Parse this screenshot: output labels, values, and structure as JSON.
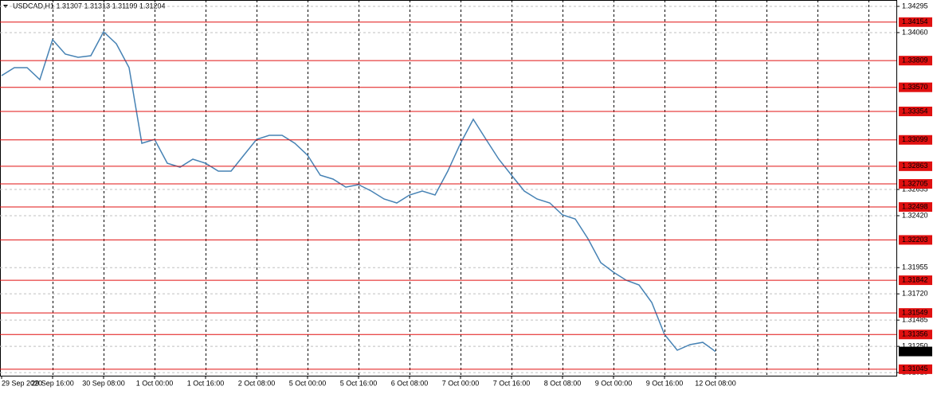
{
  "chart_data": {
    "type": "line",
    "title": "USDCAD,H1  1.31307 1.31313 1.31199 1.31204",
    "color": "#4682b4",
    "level_color": "#e01010",
    "grid": true,
    "ylim": [
      1.30987,
      1.34352
    ],
    "yticks": [
      1.34295,
      {
        "value": 1.3406,
        "label": "1.34060"
      },
      1.32655,
      {
        "value": 1.3242,
        "label": "1.32420"
      },
      1.31955,
      {
        "value": 1.3172,
        "label": "1.31720"
      },
      1.31485,
      {
        "value": 1.3125,
        "label": "1.31250"
      },
      1.31015
    ],
    "levels": [
      1.34154,
      1.33809,
      {
        "value": 1.3357,
        "label": "1.33570"
      },
      1.33354,
      1.33099,
      1.32863,
      1.32705,
      1.32498,
      1.32203,
      1.31842,
      1.31549,
      1.31356,
      1.31045
    ],
    "current_price": 1.31204,
    "xlabels": [
      "29 Sep 2020",
      "29 Sep 16:00",
      "30 Sep 08:00",
      "1 Oct 00:00",
      "1 Oct 16:00",
      "2 Oct 08:00",
      "5 Oct 00:00",
      "5 Oct 16:00",
      "6 Oct 08:00",
      "7 Oct 00:00",
      "7 Oct 16:00",
      "8 Oct 08:00",
      "9 Oct 00:00",
      "9 Oct 16:00",
      "12 Oct 08:00"
    ],
    "values": [
      1.33675,
      1.33746,
      1.33746,
      1.33639,
      1.33996,
      1.33867,
      1.33839,
      1.33853,
      1.34067,
      1.3396,
      1.33746,
      1.33069,
      1.33104,
      1.3289,
      1.32855,
      1.32926,
      1.3289,
      1.32819,
      1.32819,
      1.32962,
      1.33104,
      1.3314,
      1.3314,
      1.33069,
      1.32962,
      1.32783,
      1.32748,
      1.32676,
      1.32698,
      1.32641,
      1.3257,
      1.32534,
      1.32605,
      1.32641,
      1.32605,
      1.32819,
      1.33069,
      1.33283,
      1.33104,
      1.32926,
      1.32783,
      1.32641,
      1.3257,
      1.32534,
      1.32427,
      1.32391,
      1.32213,
      1.31999,
      1.31914,
      1.31842,
      1.318,
      1.31643,
      1.31357,
      1.31215,
      1.31265,
      1.31286,
      1.31204
    ]
  }
}
